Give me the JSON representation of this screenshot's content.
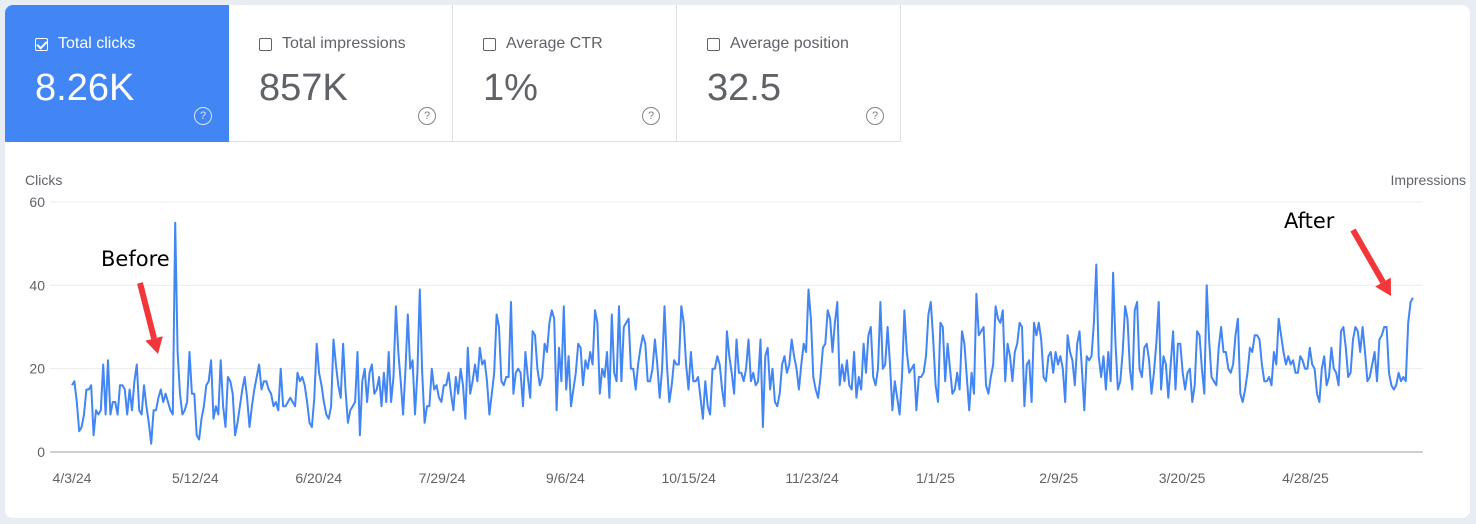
{
  "metrics": [
    {
      "label": "Total clicks",
      "value": "8.26K",
      "checked": true
    },
    {
      "label": "Total impressions",
      "value": "857K",
      "checked": false
    },
    {
      "label": "Average CTR",
      "value": "1%",
      "checked": false
    },
    {
      "label": "Average position",
      "value": "32.5",
      "checked": false
    }
  ],
  "help_glyph": "?",
  "chart_data": {
    "type": "line",
    "left_axis_label": "Clicks",
    "right_axis_label": "Impressions",
    "ylim": [
      0,
      60
    ],
    "y_ticks": [
      "0",
      "20",
      "40",
      "60"
    ],
    "x_tick_labels": [
      "4/3/24",
      "5/12/24",
      "6/20/24",
      "7/29/24",
      "9/6/24",
      "10/15/24",
      "11/23/24",
      "1/1/25",
      "2/9/25",
      "3/20/25",
      "4/28/25"
    ],
    "x_start": "4/3/24",
    "x_end": "6/1/25",
    "grid": true,
    "series": [
      {
        "name": "Clicks",
        "color": "#4285f4",
        "values": [
          16,
          17,
          12,
          5,
          6,
          9,
          15,
          15,
          16,
          4,
          10,
          9,
          10,
          21,
          9,
          22,
          9,
          12,
          12,
          9,
          16,
          16,
          15,
          9,
          15,
          10,
          17,
          21,
          10,
          9,
          16,
          11,
          7,
          2,
          10,
          10,
          13,
          15,
          12,
          14,
          12,
          10,
          9,
          55,
          24,
          14,
          9,
          10,
          12,
          24,
          14,
          14,
          4,
          3,
          8,
          11,
          16,
          17,
          22,
          8,
          11,
          9,
          22,
          11,
          6,
          18,
          17,
          14,
          4,
          7,
          11,
          15,
          18,
          13,
          6,
          11,
          15,
          18,
          21,
          15,
          17,
          17,
          15,
          14,
          11,
          12,
          10,
          20,
          11,
          11,
          12,
          13,
          12,
          11,
          19,
          17,
          18,
          16,
          12,
          7,
          6,
          13,
          26,
          19,
          16,
          12,
          9,
          8,
          11,
          27,
          21,
          16,
          13,
          26,
          15,
          7,
          10,
          11,
          12,
          24,
          4,
          17,
          20,
          12,
          19,
          21,
          14,
          15,
          18,
          11,
          19,
          12,
          24,
          12,
          18,
          35,
          24,
          17,
          9,
          20,
          33,
          20,
          22,
          9,
          19,
          39,
          19,
          7,
          11,
          11,
          20,
          15,
          16,
          13,
          12,
          16,
          16,
          19,
          14,
          10,
          18,
          14,
          20,
          16,
          8,
          25,
          14,
          17,
          21,
          17,
          25,
          21,
          22,
          17,
          9,
          14,
          19,
          33,
          30,
          17,
          16,
          18,
          18,
          36,
          14,
          19,
          20,
          19,
          11,
          24,
          18,
          13,
          29,
          28,
          20,
          16,
          18,
          26,
          24,
          31,
          34,
          32,
          10,
          25,
          17,
          35,
          15,
          23,
          11,
          15,
          19,
          26,
          25,
          16,
          22,
          20,
          24,
          21,
          34,
          31,
          14,
          20,
          18,
          24,
          13,
          33,
          19,
          17,
          35,
          17,
          30,
          31,
          32,
          20,
          20,
          15,
          21,
          25,
          28,
          26,
          17,
          17,
          20,
          27,
          21,
          13,
          20,
          35,
          21,
          12,
          16,
          22,
          21,
          21,
          35,
          31,
          21,
          15,
          24,
          17,
          17,
          18,
          13,
          8,
          17,
          11,
          9,
          20,
          20,
          23,
          21,
          15,
          11,
          29,
          23,
          19,
          14,
          27,
          19,
          19,
          17,
          20,
          27,
          17,
          19,
          16,
          17,
          27,
          6,
          23,
          25,
          15,
          20,
          12,
          11,
          14,
          21,
          23,
          19,
          21,
          27,
          23,
          20,
          15,
          21,
          26,
          24,
          39,
          32,
          18,
          15,
          13,
          18,
          25,
          26,
          34,
          32,
          24,
          31,
          36,
          16,
          21,
          17,
          22,
          16,
          15,
          24,
          13,
          18,
          15,
          26,
          19,
          28,
          30,
          18,
          16,
          20,
          36,
          20,
          21,
          30,
          21,
          10,
          17,
          13,
          9,
          18,
          34,
          24,
          19,
          20,
          21,
          10,
          18,
          18,
          19,
          23,
          33,
          36,
          27,
          16,
          12,
          31,
          30,
          17,
          26,
          20,
          14,
          15,
          19,
          15,
          29,
          26,
          18,
          10,
          19,
          14,
          38,
          28,
          29,
          30,
          16,
          14,
          18,
          21,
          35,
          32,
          31,
          34,
          17,
          26,
          23,
          17,
          24,
          26,
          31,
          30,
          11,
          21,
          22,
          12,
          31,
          28,
          31,
          27,
          18,
          17,
          23,
          24,
          19,
          24,
          21,
          23,
          20,
          12,
          28,
          24,
          22,
          16,
          26,
          29,
          20,
          10,
          23,
          22,
          23,
          31,
          45,
          23,
          18,
          23,
          15,
          24,
          17,
          43,
          26,
          15,
          17,
          24,
          35,
          32,
          20,
          15,
          34,
          36,
          20,
          18,
          25,
          26,
          22,
          14,
          19,
          26,
          36,
          15,
          23,
          21,
          13,
          21,
          29,
          15,
          26,
          26,
          19,
          15,
          19,
          20,
          12,
          16,
          29,
          28,
          20,
          14,
          40,
          27,
          18,
          17,
          16,
          25,
          30,
          24,
          24,
          20,
          19,
          21,
          28,
          32,
          14,
          12,
          15,
          19,
          25,
          24,
          28,
          28,
          27,
          21,
          17,
          17,
          18,
          16,
          24,
          21,
          32,
          28,
          24,
          21,
          23,
          21,
          22,
          19,
          19,
          23,
          22,
          20,
          20,
          25,
          21,
          20,
          14,
          12,
          20,
          23,
          16,
          18,
          25,
          20,
          19,
          16,
          29,
          30,
          25,
          18,
          19,
          27,
          30,
          29,
          24,
          30,
          24,
          17,
          18,
          21,
          24,
          17,
          27,
          28,
          30,
          30,
          19,
          16,
          15,
          16,
          19,
          17,
          18,
          17,
          31,
          36,
          37
        ]
      }
    ]
  },
  "annotations": {
    "before": "Before",
    "after": "After",
    "arrow_color": "#f2363a"
  }
}
